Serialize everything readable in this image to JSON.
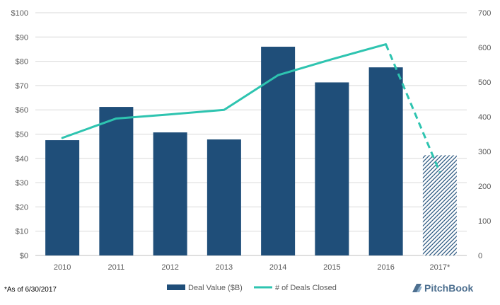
{
  "chart_data": {
    "type": "bar",
    "categories": [
      "2010",
      "2011",
      "2012",
      "2013",
      "2014",
      "2015",
      "2016",
      "2017*"
    ],
    "series": [
      {
        "name": "Deal Value ($B)",
        "type": "bar",
        "axis": "left",
        "values": [
          47.5,
          61.2,
          50.7,
          47.8,
          86.0,
          71.3,
          77.5,
          41.3
        ],
        "hatched_categories": [
          "2017*"
        ]
      },
      {
        "name": "# of Deals Closed",
        "type": "line",
        "axis": "right",
        "values": [
          339,
          395,
          407,
          420,
          520,
          566,
          609,
          240
        ],
        "dashed_from_category": "2016"
      }
    ],
    "y_left": {
      "min": 0,
      "max": 100,
      "step": 10,
      "prefix": "$"
    },
    "y_right": {
      "min": 0,
      "max": 700,
      "step": 100
    },
    "grid": true,
    "legend_position": "bottom-center",
    "footnote": "*As of 6/30/2017",
    "brand": "PitchBook",
    "colors": {
      "bar": "#1f4e79",
      "line": "#2ec4b0",
      "grid": "#d9d9d9",
      "axis_text": "#595959"
    }
  }
}
